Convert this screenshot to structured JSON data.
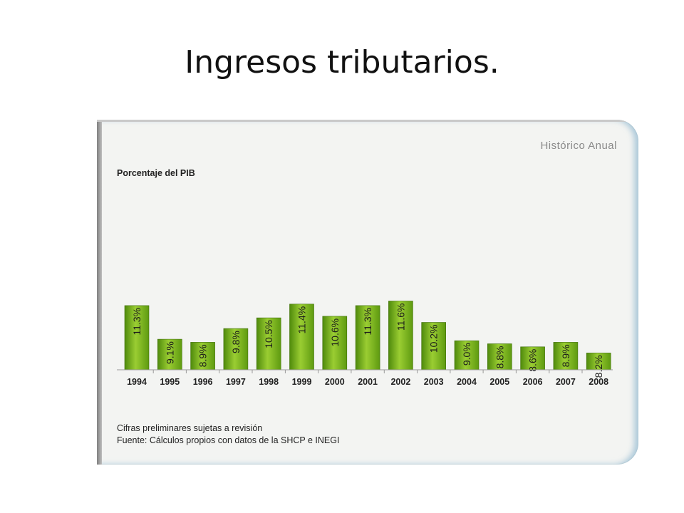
{
  "slide": {
    "title": "Ingresos tributarios."
  },
  "chart_data": {
    "type": "bar",
    "title": "Histórico Anual",
    "ylabel": "Porcentaje del PIB",
    "xlabel": "",
    "categories": [
      "1994",
      "1995",
      "1996",
      "1997",
      "1998",
      "1999",
      "2000",
      "2001",
      "2002",
      "2003",
      "2004",
      "2005",
      "2006",
      "2007",
      "2008"
    ],
    "values": [
      11.3,
      9.1,
      8.9,
      9.8,
      10.5,
      11.4,
      10.6,
      11.3,
      11.6,
      10.2,
      9.0,
      8.8,
      8.6,
      8.9,
      8.2
    ],
    "value_labels": [
      "11.3%",
      "9.1%",
      "8.9%",
      "9.8%",
      "10.5%",
      "11.4%",
      "10.6%",
      "11.3%",
      "11.6%",
      "10.2%",
      "9.0%",
      "8.8%",
      "8.6%",
      "8.9%",
      "8.2%"
    ],
    "grid": false,
    "bar_color": "#7cb516",
    "notes": [
      "Cifras preliminares sujetas a revisión",
      "Fuente: Cálculos propios con datos de la SHCP e INEGI"
    ]
  }
}
